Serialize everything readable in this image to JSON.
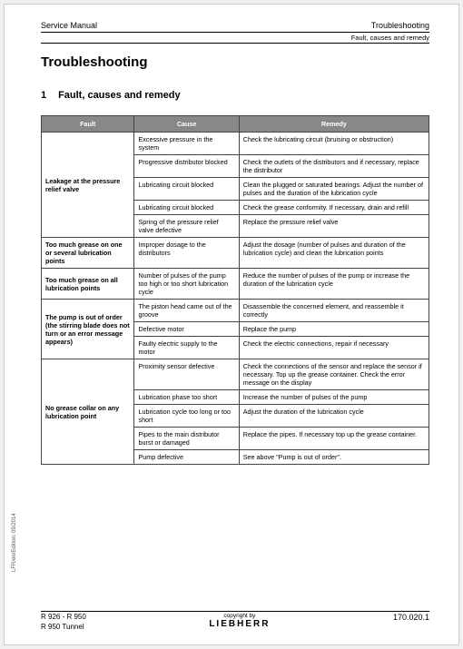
{
  "header": {
    "left": "Service Manual",
    "right": "Troubleshooting",
    "sub": "Fault, causes and remedy"
  },
  "title": "Troubleshooting",
  "section": {
    "num": "1",
    "label": "Fault, causes and remedy"
  },
  "table": {
    "headers": {
      "fault": "Fault",
      "cause": "Cause",
      "remedy": "Remedy"
    },
    "groups": [
      {
        "fault": "Leakage at the pressure relief valve",
        "rows": [
          {
            "cause": "Excessive pressure in the system",
            "remedy": "Check the lubricating circuit (bruising or obstruction)"
          },
          {
            "cause": "Progressive distributor blocked",
            "remedy": "Check the outlets of the distributors and if necessary, replace the distributor"
          },
          {
            "cause": "Lubricating circuit blocked",
            "remedy": "Clean the plugged or saturated bearings. Adjust the number of pulses and the duration of the lubrication cycle"
          },
          {
            "cause": "Lubricating circuit blocked",
            "remedy": "Check the grease conformity. If necessary, drain and refill"
          },
          {
            "cause": "Spring of the pressure relief valve defective",
            "remedy": "Replace the pressure relief valve"
          }
        ]
      },
      {
        "fault": "Too much grease on one or several lubrication points",
        "rows": [
          {
            "cause": "Improper dosage to the distributors",
            "remedy": "Adjust the dosage (number of pulses and duration of the lubrication cycle) and clean the lubrication points"
          }
        ]
      },
      {
        "fault": "Too much grease on all lubrication points",
        "rows": [
          {
            "cause": "Number of pulses of the pump too high or too short lubrication cycle",
            "remedy": "Reduce the number of pulses of the pump or increase the duration of the lubrication cycle"
          }
        ]
      },
      {
        "fault": "The pump is out of order (the stirring blade does not turn or an error message appears)",
        "rows": [
          {
            "cause": "The piston head came out of the groove",
            "remedy": "Disassemble the concerned element, and reassemble it correctly"
          },
          {
            "cause": "Defective motor",
            "remedy": "Replace the pump"
          },
          {
            "cause": "Faulty electric supply to the motor",
            "remedy": "Check the electric connections, repair if necessary"
          }
        ]
      },
      {
        "fault": "No grease collar on any lubrication point",
        "rows": [
          {
            "cause": "Proximity sensor defective",
            "remedy": "Check the connections of the sensor and replace the sensor if necessary. Top up the grease container. Check the error message on the display"
          },
          {
            "cause": "Lubrication phase too short",
            "remedy": "Increase the number of pulses of the pump"
          },
          {
            "cause": "Lubrication cycle too long or too short",
            "remedy": "Adjust the duration of the lubrication cycle"
          },
          {
            "cause": "Pipes to the main distributor burst or damaged",
            "remedy": "Replace the pipes. If necessary top up the grease container."
          },
          {
            "cause": "Pump defective",
            "remedy": "See above \"Pump is out of order\"."
          }
        ]
      }
    ]
  },
  "side_note": "LFR/en/Edition: 09/2014",
  "footer": {
    "left1": "R 926 - R 950",
    "left2": "R 950 Tunnel",
    "copyright": "copyright by",
    "brand": "LIEBHERR",
    "page": "170.020.1"
  }
}
